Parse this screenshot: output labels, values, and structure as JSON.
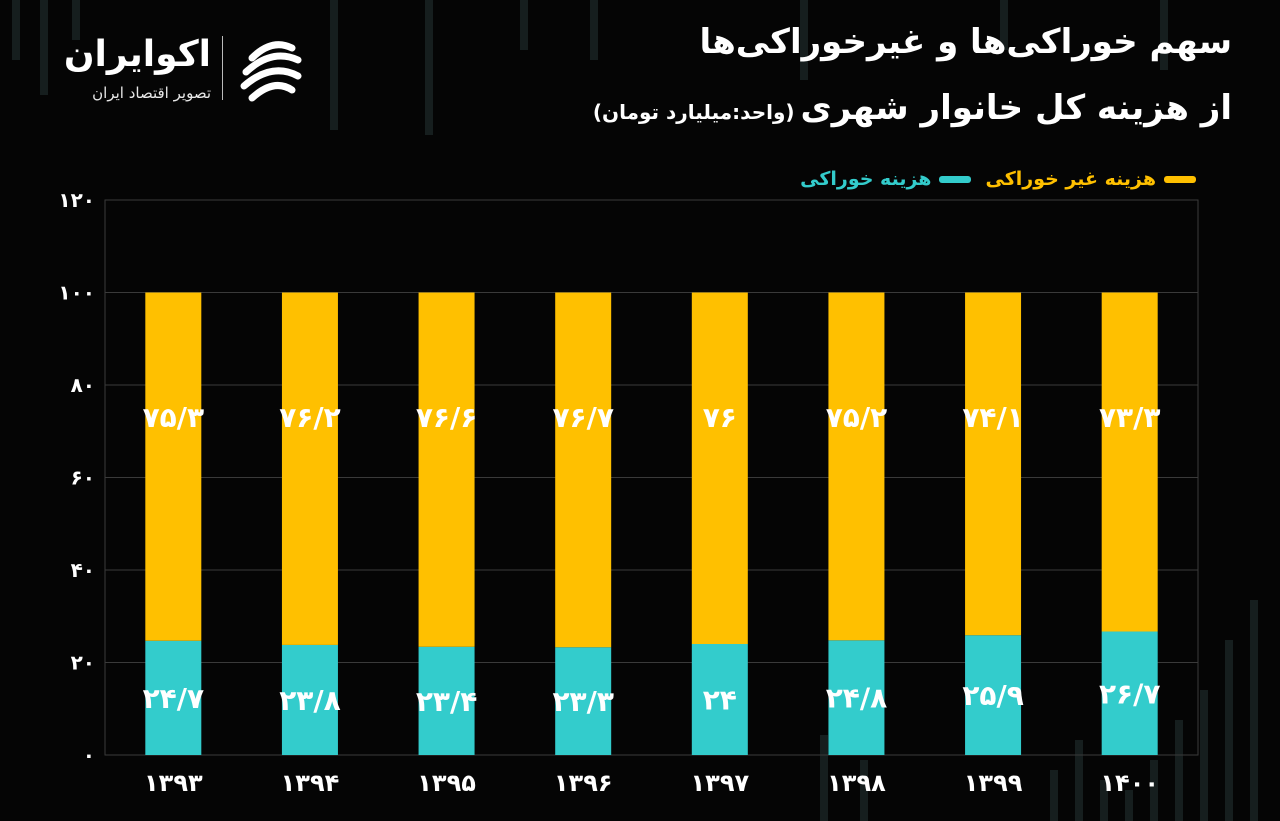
{
  "header": {
    "title_line1": "سهم خوراکی‌ها و غیرخوراکی‌ها",
    "title_line2": "از هزینه کل خانوار شهری",
    "unit_note": "(واحد:میلیارد تومان)"
  },
  "logo": {
    "name": "اکوایران",
    "subtitle": "تصویر اقتصاد ایران",
    "icon": "ecoiran-swirl-icon"
  },
  "colors": {
    "non_food": "#FFC000",
    "food": "#33CCCC",
    "background": "#050505",
    "grid": "#3a3a3a"
  },
  "chart_data": {
    "type": "bar",
    "stacked": true,
    "categories": [
      "۱۳۹۳",
      "۱۳۹۴",
      "۱۳۹۵",
      "۱۳۹۶",
      "۱۳۹۷",
      "۱۳۹۸",
      "۱۳۹۹",
      "۱۴۰۰"
    ],
    "series": [
      {
        "name": "هزینه خوراکی",
        "color": "#33CCCC",
        "values": [
          24.7,
          23.8,
          23.4,
          23.3,
          24,
          24.8,
          25.9,
          26.7
        ],
        "labels": [
          "۲۴/۷",
          "۲۳/۸",
          "۲۳/۴",
          "۲۳/۳",
          "۲۴",
          "۲۴/۸",
          "۲۵/۹",
          "۲۶/۷"
        ]
      },
      {
        "name": "هزینه غیر خوراکی",
        "color": "#FFC000",
        "values": [
          75.3,
          76.2,
          76.6,
          76.7,
          76,
          75.2,
          74.1,
          73.3
        ],
        "labels": [
          "۷۵/۳",
          "۷۶/۲",
          "۷۶/۶",
          "۷۶/۷",
          "۷۶",
          "۷۵/۲",
          "۷۴/۱",
          "۷۳/۳"
        ]
      }
    ],
    "yticks": [
      0,
      20,
      40,
      60,
      80,
      100,
      120
    ],
    "ytick_labels": [
      "۰",
      "۲۰",
      "۴۰",
      "۶۰",
      "۸۰",
      "۱۰۰",
      "۱۲۰"
    ],
    "ylim": [
      0,
      120
    ],
    "grid": true,
    "legend_position": "top-right"
  }
}
